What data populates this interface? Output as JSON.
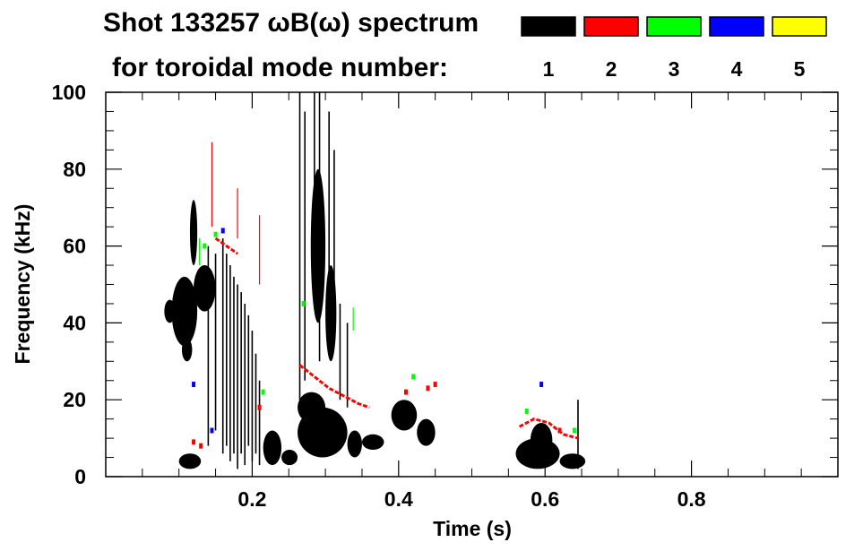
{
  "chart_data": {
    "type": "heatmap",
    "title_line1": "Shot 133257 ωB(ω) spectrum",
    "title_line2": "for toroidal mode number:",
    "xlabel": "Time (s)",
    "ylabel": "Frequency (kHz)",
    "xlim": [
      0.0,
      1.0
    ],
    "ylim": [
      0,
      100
    ],
    "x_ticks": [
      {
        "value": 0.2,
        "label": "0.2"
      },
      {
        "value": 0.4,
        "label": "0.4"
      },
      {
        "value": 0.6,
        "label": "0.6"
      },
      {
        "value": 0.8,
        "label": "0.8"
      }
    ],
    "y_ticks": [
      {
        "value": 0,
        "label": "0"
      },
      {
        "value": 20,
        "label": "20"
      },
      {
        "value": 40,
        "label": "40"
      },
      {
        "value": 60,
        "label": "60"
      },
      {
        "value": 80,
        "label": "80"
      },
      {
        "value": 100,
        "label": "100"
      }
    ],
    "legend": [
      {
        "mode": "1",
        "label": "1",
        "color": "#000000"
      },
      {
        "mode": "2",
        "label": "2",
        "color": "#ff0000"
      },
      {
        "mode": "3",
        "label": "3",
        "color": "#00ff00"
      },
      {
        "mode": "4",
        "label": "4",
        "color": "#0000ff"
      },
      {
        "mode": "5",
        "label": "5",
        "color": "#ffff00"
      }
    ],
    "blobs": [
      {
        "mode": 1,
        "t0": 0.09,
        "t1": 0.125,
        "f0": 34,
        "f1": 52
      },
      {
        "mode": 1,
        "t0": 0.08,
        "t1": 0.095,
        "f0": 40,
        "f1": 46
      },
      {
        "mode": 1,
        "t0": 0.104,
        "t1": 0.118,
        "f0": 30,
        "f1": 36
      },
      {
        "mode": 1,
        "t0": 0.12,
        "t1": 0.15,
        "f0": 43,
        "f1": 55
      },
      {
        "mode": 1,
        "t0": 0.115,
        "t1": 0.125,
        "f0": 55,
        "f1": 72
      },
      {
        "mode": 1,
        "t0": 0.1,
        "t1": 0.13,
        "f0": 2,
        "f1": 6
      },
      {
        "mode": 1,
        "t0": 0.215,
        "t1": 0.24,
        "f0": 3,
        "f1": 12
      },
      {
        "mode": 1,
        "t0": 0.24,
        "t1": 0.262,
        "f0": 3,
        "f1": 7
      },
      {
        "mode": 1,
        "t0": 0.262,
        "t1": 0.33,
        "f0": 5,
        "f1": 18
      },
      {
        "mode": 1,
        "t0": 0.262,
        "t1": 0.3,
        "f0": 14,
        "f1": 22
      },
      {
        "mode": 1,
        "t0": 0.33,
        "t1": 0.35,
        "f0": 5,
        "f1": 12
      },
      {
        "mode": 1,
        "t0": 0.35,
        "t1": 0.38,
        "f0": 7,
        "f1": 11
      },
      {
        "mode": 1,
        "t0": 0.28,
        "t1": 0.3,
        "f0": 40,
        "f1": 80
      },
      {
        "mode": 1,
        "t0": 0.3,
        "t1": 0.315,
        "f0": 30,
        "f1": 55
      },
      {
        "mode": 1,
        "t0": 0.39,
        "t1": 0.425,
        "f0": 12,
        "f1": 20
      },
      {
        "mode": 1,
        "t0": 0.425,
        "t1": 0.45,
        "f0": 8,
        "f1": 15
      },
      {
        "mode": 1,
        "t0": 0.56,
        "t1": 0.62,
        "f0": 2,
        "f1": 10
      },
      {
        "mode": 1,
        "t0": 0.58,
        "t1": 0.61,
        "f0": 5,
        "f1": 14
      },
      {
        "mode": 1,
        "t0": 0.62,
        "t1": 0.655,
        "f0": 2,
        "f1": 6
      }
    ],
    "vlines": [
      {
        "mode": 1,
        "t": 0.14,
        "f0": 8,
        "f1": 60
      },
      {
        "mode": 1,
        "t": 0.15,
        "f0": 12,
        "f1": 58
      },
      {
        "mode": 1,
        "t": 0.16,
        "f0": 6,
        "f1": 62
      },
      {
        "mode": 1,
        "t": 0.165,
        "f0": 8,
        "f1": 58
      },
      {
        "mode": 1,
        "t": 0.17,
        "f0": 4,
        "f1": 55
      },
      {
        "mode": 1,
        "t": 0.175,
        "f0": 6,
        "f1": 52
      },
      {
        "mode": 1,
        "t": 0.18,
        "f0": 2,
        "f1": 50
      },
      {
        "mode": 1,
        "t": 0.185,
        "f0": 6,
        "f1": 48
      },
      {
        "mode": 1,
        "t": 0.19,
        "f0": 3,
        "f1": 45
      },
      {
        "mode": 1,
        "t": 0.195,
        "f0": 8,
        "f1": 42
      },
      {
        "mode": 1,
        "t": 0.2,
        "f0": 4,
        "f1": 38
      },
      {
        "mode": 1,
        "t": 0.205,
        "f0": 6,
        "f1": 32
      },
      {
        "mode": 1,
        "t": 0.21,
        "f0": 3,
        "f1": 25
      },
      {
        "mode": 1,
        "t": 0.265,
        "f0": 20,
        "f1": 100
      },
      {
        "mode": 1,
        "t": 0.272,
        "f0": 25,
        "f1": 95
      },
      {
        "mode": 1,
        "t": 0.285,
        "f0": 45,
        "f1": 100
      },
      {
        "mode": 1,
        "t": 0.292,
        "f0": 30,
        "f1": 100
      },
      {
        "mode": 1,
        "t": 0.305,
        "f0": 40,
        "f1": 95
      },
      {
        "mode": 1,
        "t": 0.312,
        "f0": 35,
        "f1": 85
      },
      {
        "mode": 1,
        "t": 0.32,
        "f0": 20,
        "f1": 45
      },
      {
        "mode": 1,
        "t": 0.33,
        "f0": 18,
        "f1": 40
      },
      {
        "mode": 1,
        "t": 0.645,
        "f0": 2,
        "f1": 20
      },
      {
        "mode": 2,
        "t": 0.145,
        "f0": 65,
        "f1": 87
      },
      {
        "mode": 2,
        "t": 0.18,
        "f0": 62,
        "f1": 75
      },
      {
        "mode": 2,
        "t": 0.21,
        "f0": 50,
        "f1": 68
      },
      {
        "mode": 3,
        "t": 0.128,
        "f0": 55,
        "f1": 62
      },
      {
        "mode": 3,
        "t": 0.338,
        "f0": 38,
        "f1": 44
      }
    ],
    "curves": [
      {
        "mode": 2,
        "points": [
          [
            0.265,
            29
          ],
          [
            0.285,
            26
          ],
          [
            0.305,
            23
          ],
          [
            0.325,
            21
          ],
          [
            0.345,
            19
          ],
          [
            0.36,
            18
          ]
        ]
      },
      {
        "mode": 2,
        "points": [
          [
            0.15,
            62
          ],
          [
            0.165,
            60
          ],
          [
            0.18,
            58
          ]
        ]
      },
      {
        "mode": 2,
        "points": [
          [
            0.565,
            13
          ],
          [
            0.585,
            15
          ],
          [
            0.605,
            14
          ],
          [
            0.625,
            11
          ],
          [
            0.645,
            10
          ]
        ]
      }
    ],
    "dots": [
      {
        "mode": 2,
        "t": 0.44,
        "f": 23
      },
      {
        "mode": 2,
        "t": 0.45,
        "f": 24
      },
      {
        "mode": 2,
        "t": 0.41,
        "f": 22
      },
      {
        "mode": 2,
        "t": 0.12,
        "f": 9
      },
      {
        "mode": 2,
        "t": 0.13,
        "f": 8
      },
      {
        "mode": 2,
        "t": 0.62,
        "f": 12
      },
      {
        "mode": 2,
        "t": 0.21,
        "f": 18
      },
      {
        "mode": 3,
        "t": 0.135,
        "f": 60
      },
      {
        "mode": 3,
        "t": 0.15,
        "f": 63
      },
      {
        "mode": 3,
        "t": 0.27,
        "f": 45
      },
      {
        "mode": 3,
        "t": 0.42,
        "f": 26
      },
      {
        "mode": 3,
        "t": 0.575,
        "f": 17
      },
      {
        "mode": 3,
        "t": 0.64,
        "f": 12
      },
      {
        "mode": 3,
        "t": 0.215,
        "f": 22
      },
      {
        "mode": 4,
        "t": 0.16,
        "f": 64
      },
      {
        "mode": 4,
        "t": 0.12,
        "f": 24
      },
      {
        "mode": 4,
        "t": 0.595,
        "f": 24
      },
      {
        "mode": 4,
        "t": 0.145,
        "f": 12
      }
    ]
  }
}
